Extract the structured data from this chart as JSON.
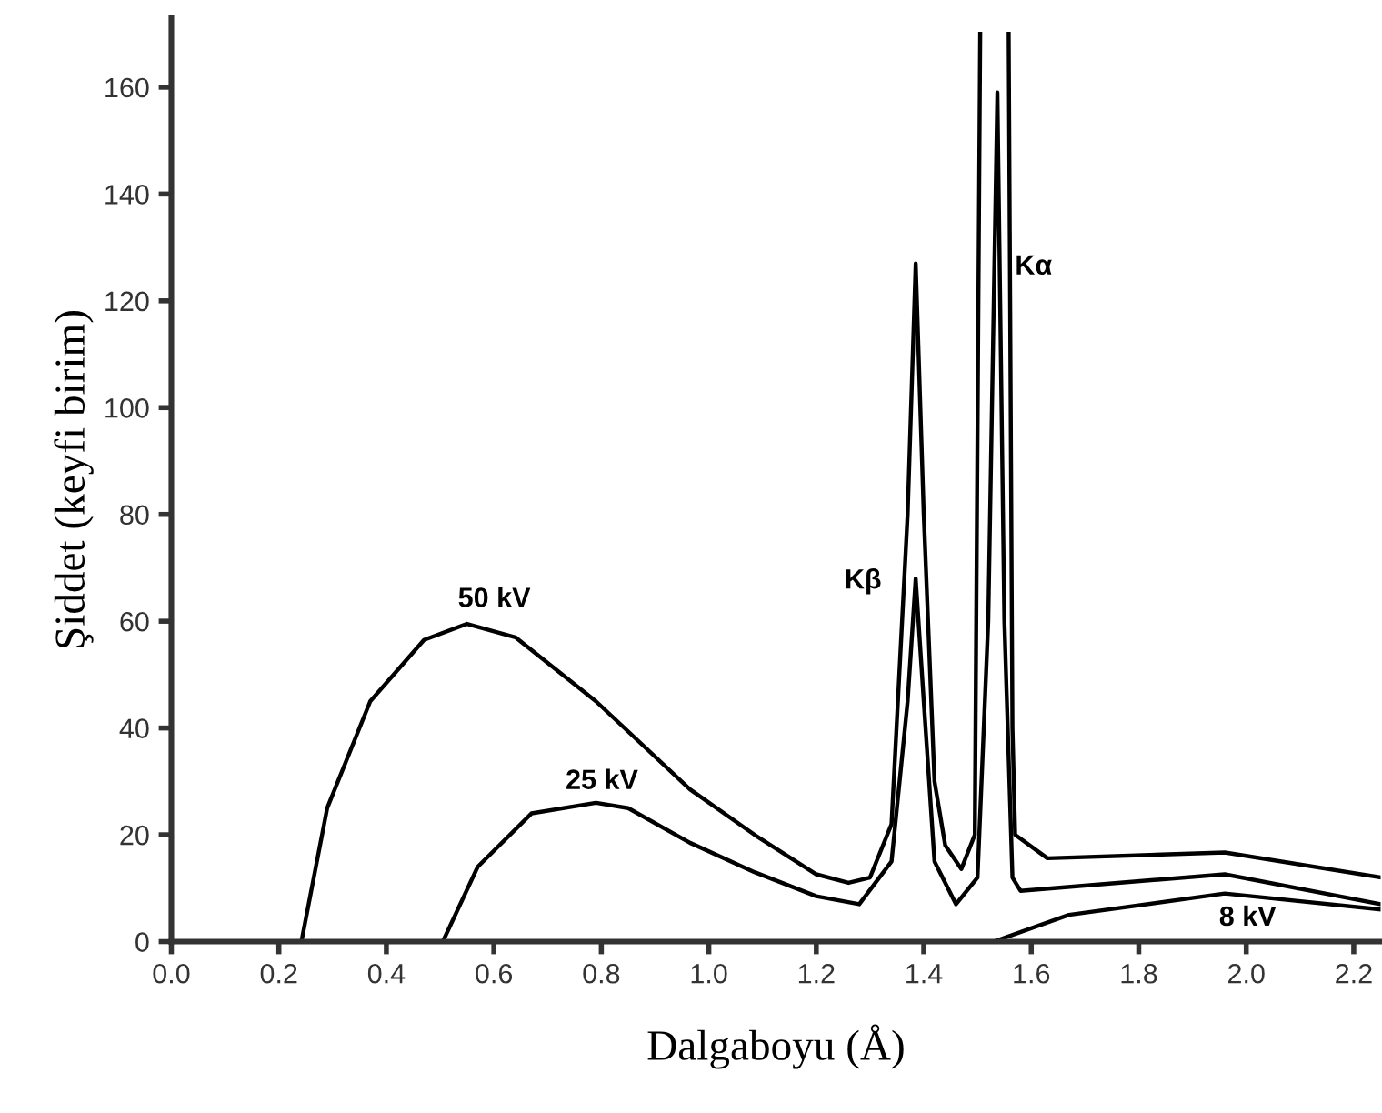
{
  "chart_data": {
    "type": "line",
    "xlabel": "Dalgaboyu (Å)",
    "ylabel": "Şiddet (keyfi birim)",
    "xlim": [
      0,
      2.25
    ],
    "ylim": [
      0,
      173
    ],
    "xticks": [
      {
        "value": 0,
        "label": "0.0"
      },
      {
        "value": 0.2,
        "label": "0.2"
      },
      {
        "value": 0.4,
        "label": "0.4"
      },
      {
        "value": 0.6,
        "label": "0.6"
      },
      {
        "value": 0.8,
        "label": "0.8"
      },
      {
        "value": 1.0,
        "label": "1.0"
      },
      {
        "value": 1.2,
        "label": "1.2"
      },
      {
        "value": 1.4,
        "label": "1.4"
      },
      {
        "value": 1.6,
        "label": "1.6"
      },
      {
        "value": 1.8,
        "label": "1.8"
      },
      {
        "value": 2.0,
        "label": "2.0"
      },
      {
        "value": 2.2,
        "label": "2.2"
      }
    ],
    "yticks": [
      0,
      20,
      40,
      60,
      80,
      100,
      120,
      140,
      160
    ],
    "grid": false,
    "legend": false,
    "marker": "none",
    "line_style": "solid",
    "series": [
      {
        "name": "50 kV",
        "color": "#000000",
        "x": [
          0.242,
          0.29,
          0.37,
          0.47,
          0.55,
          0.64,
          0.79,
          0.965,
          1.085,
          1.2,
          1.26,
          1.3,
          1.34,
          1.37,
          1.385,
          1.4,
          1.42,
          1.44,
          1.47,
          1.495,
          1.505,
          1.53,
          1.558,
          1.565,
          1.57,
          1.63,
          1.96,
          2.25
        ],
        "values": [
          0,
          25,
          45,
          56.5,
          59.5,
          57,
          45,
          28.5,
          20,
          12.6,
          11,
          12,
          22,
          80,
          127,
          80,
          30,
          18,
          13.6,
          20,
          170,
          null,
          170,
          40,
          20,
          15.6,
          16.7,
          12
        ]
      },
      {
        "name": "25 kV",
        "color": "#000000",
        "x": [
          0.505,
          0.57,
          0.67,
          0.79,
          0.85,
          0.965,
          1.085,
          1.2,
          1.28,
          1.34,
          1.37,
          1.385,
          1.4,
          1.42,
          1.46,
          1.5,
          1.52,
          1.537,
          1.55,
          1.565,
          1.58,
          1.96,
          2.25
        ],
        "values": [
          0,
          14,
          24,
          26,
          25,
          18.5,
          13,
          8.5,
          7,
          15,
          45,
          68,
          45,
          15,
          7,
          12,
          60,
          159,
          60,
          12,
          9.5,
          12.6,
          7
        ]
      },
      {
        "name": "8 kV",
        "color": "#000000",
        "x": [
          1.53,
          1.67,
          1.96,
          2.25
        ],
        "values": [
          0,
          5,
          9,
          6
        ]
      }
    ],
    "annotations": [
      "Kβ",
      "Kα"
    ]
  }
}
